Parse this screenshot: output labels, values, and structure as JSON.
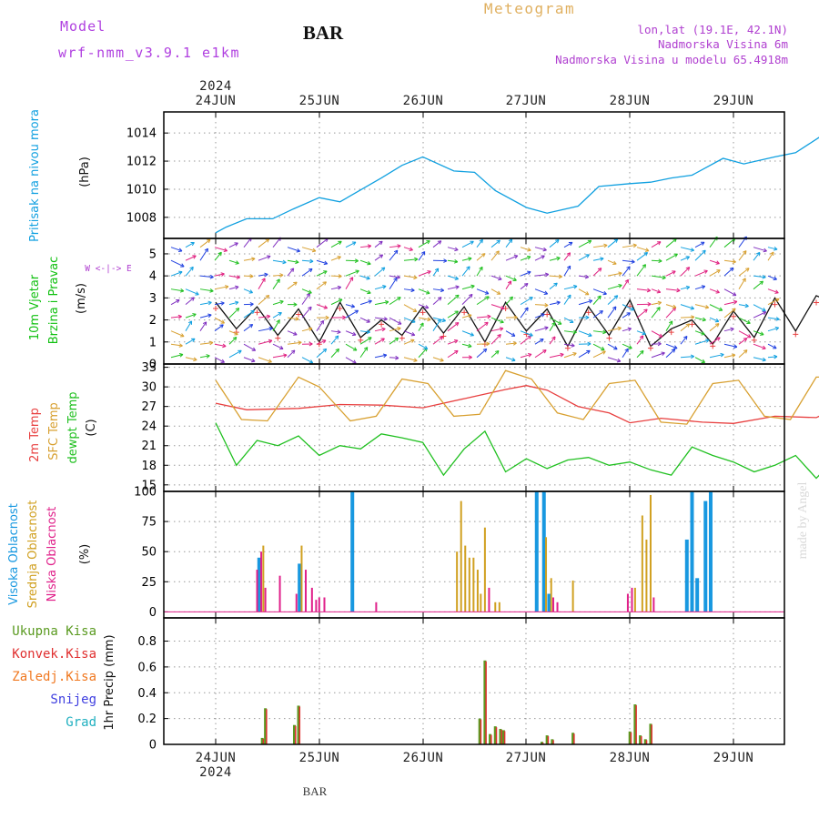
{
  "header": {
    "model_label": "Model",
    "model_name": "wrf-nmm_v3.9.1 e1km",
    "station": "BAR",
    "title": "Meteogram",
    "location_lines": [
      "lon,lat (19.1E, 42.1N)",
      "Nadmorska Visina 6m",
      "Nadmorska Visina u modelu 65.4918m"
    ],
    "footer_station": "BAR",
    "credit": "made by Angel"
  },
  "colors": {
    "title": "#e0b060",
    "model": "#b040e0",
    "location": "#b040d0",
    "pressure": "#10a0e0",
    "wind_label": "#10c010",
    "t2m": "#e84040",
    "sfc": "#d8a030",
    "dewpt": "#20c020",
    "cloud_high": "#1898e0",
    "cloud_mid": "#d0a020",
    "cloud_low": "#e0208a",
    "precip_total": "#5a9a20",
    "precip_conv": "#e03030",
    "precip_frz": "#f07820",
    "precip_snow": "#4040e0",
    "precip_grad": "#20b0c0",
    "credit": "#d8d8d8"
  },
  "time_axis": {
    "year": "2024",
    "days": [
      "24JUN",
      "25JUN",
      "26JUN",
      "27JUN",
      "28JUN",
      "29JUN"
    ]
  },
  "chart_data": [
    {
      "type": "line",
      "ylabel_lines": [
        "Pritisak na nivou mora",
        "(hPa)"
      ],
      "ylim": [
        1006.5,
        1015.5
      ],
      "yticks": [
        "1008",
        "1010",
        "1012",
        "1014"
      ],
      "ytick_values": [
        1008,
        1010,
        1012,
        1014
      ],
      "grid": true,
      "series": [
        {
          "x": [
            0,
            0.1,
            0.3,
            0.55,
            0.75,
            1.0,
            1.2,
            1.6,
            1.8,
            2.0,
            2.3,
            2.5,
            2.7,
            3.0,
            3.2,
            3.5,
            3.7,
            4.0,
            4.2,
            4.4,
            4.6,
            4.9,
            5.1,
            5.4,
            5.6,
            5.85,
            6.1
          ],
          "y": [
            1006.9,
            1007.3,
            1007.9,
            1007.9,
            1008.6,
            1009.4,
            1009.1,
            1010.8,
            1011.7,
            1012.3,
            1011.3,
            1011.2,
            1009.9,
            1008.7,
            1008.3,
            1008.8,
            1010.2,
            1010.4,
            1010.5,
            1010.8,
            1011.0,
            1012.2,
            1011.8,
            1012.3,
            1012.6,
            1013.8,
            1014.9
          ]
        }
      ]
    },
    {
      "type": "line",
      "ylabel_lines": [
        "10m Vjetar",
        "Brzina i Pravac",
        "(m/s)"
      ],
      "compass_label": "W <-|-> E",
      "ylim": [
        0,
        5.7
      ],
      "yticks": [
        "0",
        "1",
        "2",
        "3",
        "4",
        "5"
      ],
      "ytick_values": [
        0,
        1,
        2,
        3,
        4,
        5
      ],
      "grid": true,
      "series": [
        {
          "x": [
            0,
            0.2,
            0.4,
            0.6,
            0.8,
            1.0,
            1.2,
            1.4,
            1.6,
            1.8,
            2.0,
            2.2,
            2.4,
            2.6,
            2.8,
            3.0,
            3.2,
            3.4,
            3.6,
            3.8,
            4.0,
            4.2,
            4.4,
            4.6,
            4.8,
            5.0,
            5.2,
            5.4,
            5.6,
            5.8,
            6.1
          ],
          "y": [
            2.8,
            1.6,
            2.6,
            1.3,
            2.5,
            1.0,
            2.8,
            1.2,
            2.0,
            1.3,
            2.6,
            1.4,
            2.6,
            1.0,
            2.8,
            1.5,
            2.5,
            0.8,
            2.6,
            1.3,
            2.9,
            0.8,
            1.6,
            2.0,
            0.9,
            2.4,
            1.2,
            3.0,
            1.5,
            3.1,
            2.5
          ]
        }
      ]
    },
    {
      "type": "line",
      "ylabel_lines": [
        "2m Temp",
        "SFC Temp",
        "dewpt Temp",
        "(C)"
      ],
      "ylim": [
        14,
        33.5
      ],
      "yticks": [
        "15",
        "18",
        "21",
        "24",
        "27",
        "30",
        "33"
      ],
      "ytick_values": [
        15,
        18,
        21,
        24,
        27,
        30,
        33
      ],
      "grid": true,
      "series": [
        {
          "name": "2m Temp",
          "x": [
            0,
            0.3,
            0.8,
            1.2,
            1.6,
            2.0,
            2.4,
            2.8,
            3.0,
            3.2,
            3.5,
            3.8,
            4.0,
            4.3,
            4.7,
            5.0,
            5.4,
            5.8,
            6.0,
            6.1
          ],
          "y": [
            27.5,
            26.5,
            26.7,
            27.3,
            27.2,
            26.8,
            28.2,
            29.6,
            30.2,
            29.5,
            27.0,
            26.0,
            24.5,
            25.2,
            24.6,
            24.4,
            25.5,
            25.3,
            26.8,
            26.6
          ]
        },
        {
          "name": "SFC Temp",
          "x": [
            0,
            0.25,
            0.5,
            0.8,
            1.0,
            1.3,
            1.55,
            1.8,
            2.05,
            2.3,
            2.55,
            2.8,
            3.05,
            3.3,
            3.55,
            3.8,
            4.05,
            4.3,
            4.55,
            4.8,
            5.05,
            5.3,
            5.55,
            5.8,
            6.05
          ],
          "y": [
            31,
            25.0,
            24.8,
            31.5,
            30.0,
            24.8,
            25.5,
            31.2,
            30.5,
            25.5,
            25.8,
            32.5,
            31.2,
            26.0,
            25.0,
            30.5,
            31.0,
            24.6,
            24.3,
            30.5,
            31.0,
            25.5,
            25.0,
            31.5,
            31.5
          ]
        },
        {
          "name": "dewpt Temp",
          "x": [
            0,
            0.2,
            0.4,
            0.6,
            0.8,
            1.0,
            1.2,
            1.4,
            1.6,
            1.8,
            2.0,
            2.2,
            2.4,
            2.6,
            2.8,
            3.0,
            3.2,
            3.4,
            3.6,
            3.8,
            4.0,
            4.2,
            4.4,
            4.6,
            4.8,
            5.0,
            5.2,
            5.4,
            5.6,
            5.8,
            6.0,
            6.1
          ],
          "y": [
            24.5,
            18.0,
            21.8,
            21.0,
            22.5,
            19.5,
            21.0,
            20.5,
            22.8,
            22.2,
            21.5,
            16.5,
            20.5,
            23.2,
            17.0,
            19.0,
            17.5,
            18.8,
            19.2,
            18.0,
            18.5,
            17.3,
            16.5,
            20.8,
            19.5,
            18.5,
            17.0,
            18.0,
            19.5,
            16.0,
            19.3,
            19.3
          ]
        }
      ]
    },
    {
      "type": "bar",
      "ylabel_lines": [
        "Visoka Oblacnost",
        "Srednja Oblacnost",
        "Niska Oblacnost",
        "(%)"
      ],
      "ylim": [
        -5,
        100
      ],
      "yticks": [
        "0",
        "25",
        "50",
        "75",
        "100"
      ],
      "ytick_values": [
        0,
        25,
        50,
        75,
        100
      ],
      "grid": true,
      "series": [
        {
          "name": "Visoka Oblacnost",
          "x": [
            0.42,
            0.81,
            1.32,
            3.1,
            3.17,
            3.22,
            4.55,
            4.6,
            4.65,
            4.73,
            4.78
          ],
          "values": [
            45,
            40,
            100,
            100,
            100,
            15,
            60,
            100,
            28,
            92,
            100
          ]
        },
        {
          "name": "Srednja Oblacnost",
          "x": [
            0.46,
            0.83,
            2.33,
            2.37,
            2.41,
            2.45,
            2.49,
            2.53,
            2.56,
            2.6,
            2.7,
            2.74,
            3.19,
            3.24,
            3.45,
            4.05,
            4.12,
            4.16,
            4.2
          ],
          "values": [
            55,
            55,
            50,
            92,
            55,
            45,
            45,
            35,
            15,
            70,
            8,
            8,
            62,
            28,
            26,
            20,
            80,
            60,
            97
          ]
        },
        {
          "name": "Niska Oblacnost",
          "x": [
            0.4,
            0.44,
            0.48,
            0.62,
            0.78,
            0.87,
            0.93,
            0.97,
            1.0,
            1.05,
            1.55,
            2.64,
            3.26,
            3.3,
            3.98,
            4.02,
            4.23
          ],
          "values": [
            35,
            50,
            20,
            30,
            15,
            35,
            20,
            10,
            12,
            12,
            8,
            20,
            12,
            8,
            15,
            20,
            12
          ]
        }
      ]
    },
    {
      "type": "bar",
      "ylabel_lines": [
        "1hr Precip (mm)"
      ],
      "legend": [
        "Ukupna Kisa",
        "Konvek.Kisa",
        "Zaledj.Kisa",
        "Snijeg",
        "Grad"
      ],
      "ylim": [
        0,
        0.98
      ],
      "yticks": [
        "0",
        "0.2",
        "0.4",
        "0.6",
        "0.8"
      ],
      "ytick_values": [
        0,
        0.2,
        0.4,
        0.6,
        0.8
      ],
      "grid": true,
      "series": [
        {
          "name": "Ukupna Kisa",
          "x": [
            0.45,
            0.48,
            0.76,
            0.8,
            2.55,
            2.6,
            2.65,
            2.7,
            2.75,
            2.78,
            3.15,
            3.2,
            3.25,
            3.45,
            4.0,
            4.05,
            4.1,
            4.15,
            4.2
          ],
          "values": [
            0.05,
            0.28,
            0.15,
            0.3,
            0.2,
            0.65,
            0.08,
            0.14,
            0.12,
            0.11,
            0.02,
            0.07,
            0.04,
            0.09,
            0.1,
            0.31,
            0.07,
            0.04,
            0.16
          ]
        }
      ]
    }
  ]
}
